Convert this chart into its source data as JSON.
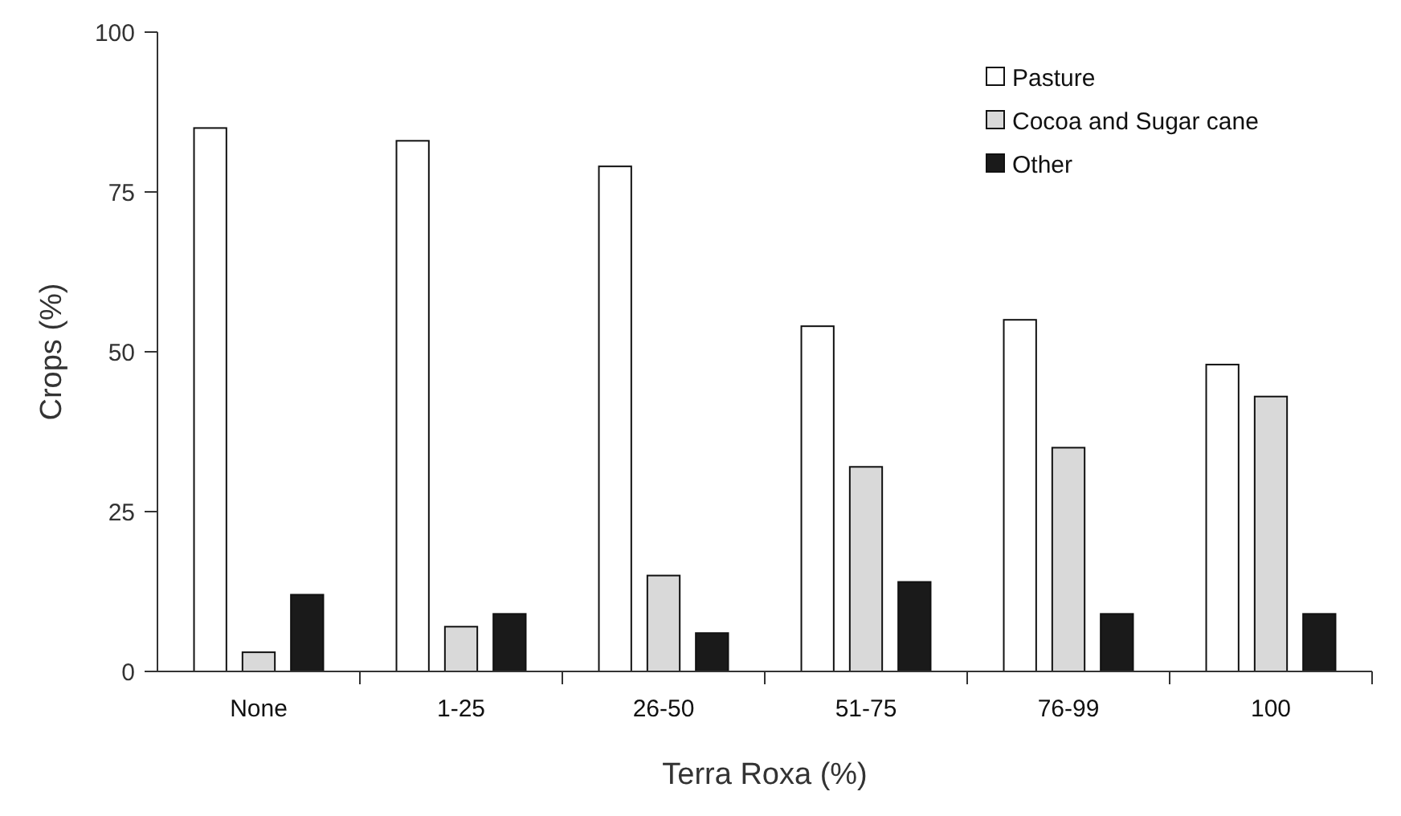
{
  "chart_data": {
    "type": "bar",
    "xlabel": "Terra Roxa (%)",
    "ylabel": "Crops (%)",
    "categories": [
      "None",
      "1-25",
      "26-50",
      "51-75",
      "76-99",
      "100"
    ],
    "series": [
      {
        "name": "Pasture",
        "color": "#ffffff",
        "values": [
          85,
          83,
          79,
          54,
          55,
          48
        ]
      },
      {
        "name": "Cocoa and Sugar cane",
        "color": "#d9d9d9",
        "values": [
          3,
          7,
          15,
          32,
          35,
          43
        ]
      },
      {
        "name": "Other",
        "color": "#1a1a1a",
        "values": [
          12,
          9,
          6,
          14,
          9,
          9
        ]
      }
    ],
    "ylim": [
      0,
      100
    ],
    "yticks": [
      0,
      25,
      50,
      75,
      100
    ],
    "grid": false,
    "legend": "top right"
  }
}
